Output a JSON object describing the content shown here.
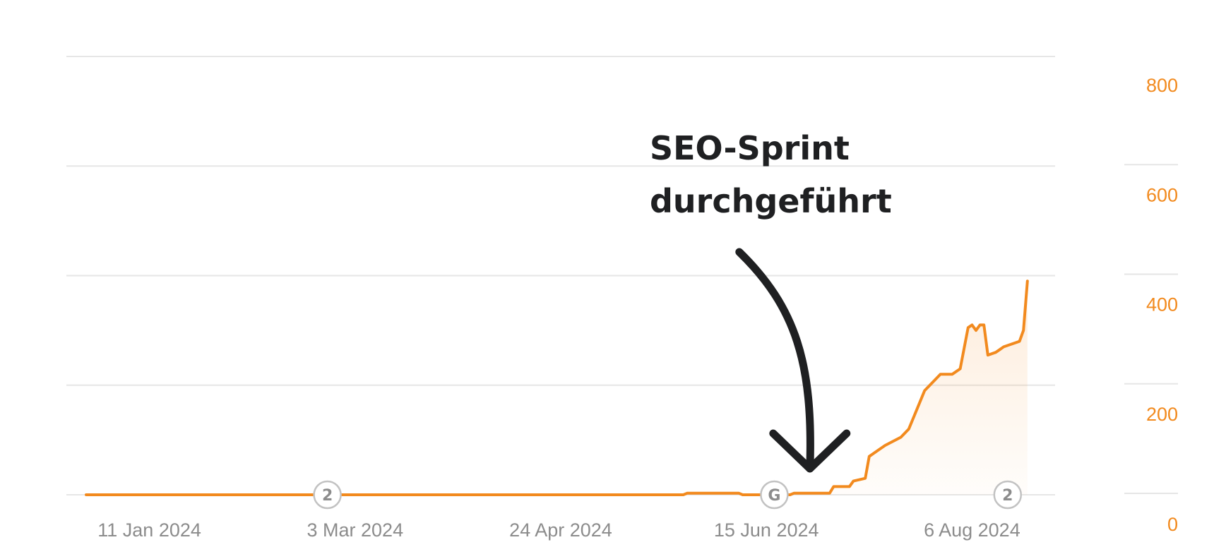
{
  "chart_data": {
    "type": "area",
    "x_ticks": [
      "11 Jan 2024",
      "3 Mar 2024",
      "24 Apr 2024",
      "15 Jun 2024",
      "6 Aug 2024"
    ],
    "y_ticks": [
      0,
      200,
      400,
      600,
      800
    ],
    "ylim": [
      0,
      800
    ],
    "xlim": [
      "2023-12-21",
      "2024-08-27"
    ],
    "grid": true,
    "y_axis_side": "right",
    "series": [
      {
        "color": "#f28a1e",
        "points": [
          [
            "2023-12-26",
            0
          ],
          [
            "2024-02-25",
            0
          ],
          [
            "2024-05-01",
            0
          ],
          [
            "2024-05-25",
            0
          ],
          [
            "2024-05-26",
            3
          ],
          [
            "2024-06-08",
            3
          ],
          [
            "2024-06-09",
            0
          ],
          [
            "2024-06-21",
            0
          ],
          [
            "2024-06-22",
            3
          ],
          [
            "2024-07-01",
            3
          ],
          [
            "2024-07-02",
            15
          ],
          [
            "2024-07-06",
            15
          ],
          [
            "2024-07-07",
            25
          ],
          [
            "2024-07-10",
            30
          ],
          [
            "2024-07-11",
            70
          ],
          [
            "2024-07-13",
            80
          ],
          [
            "2024-07-15",
            90
          ],
          [
            "2024-07-19",
            105
          ],
          [
            "2024-07-21",
            120
          ],
          [
            "2024-07-23",
            155
          ],
          [
            "2024-07-25",
            190
          ],
          [
            "2024-07-27",
            205
          ],
          [
            "2024-07-29",
            220
          ],
          [
            "2024-08-01",
            220
          ],
          [
            "2024-08-03",
            230
          ],
          [
            "2024-08-05",
            305
          ],
          [
            "2024-08-06",
            310
          ],
          [
            "2024-08-07",
            300
          ],
          [
            "2024-08-08",
            310
          ],
          [
            "2024-08-09",
            310
          ],
          [
            "2024-08-10",
            255
          ],
          [
            "2024-08-12",
            260
          ],
          [
            "2024-08-13",
            265
          ],
          [
            "2024-08-14",
            270
          ],
          [
            "2024-08-16",
            275
          ],
          [
            "2024-08-18",
            280
          ],
          [
            "2024-08-19",
            300
          ],
          [
            "2024-08-20",
            390
          ]
        ]
      }
    ],
    "event_markers": [
      {
        "label": "2",
        "date": "2024-02-25"
      },
      {
        "label": "G",
        "date": "2024-06-17"
      },
      {
        "label": "2",
        "date": "2024-08-15"
      }
    ],
    "annotation": {
      "line1": "SEO-Sprint",
      "line2": "durchgeführt",
      "target_date": "2024-06-26"
    }
  }
}
